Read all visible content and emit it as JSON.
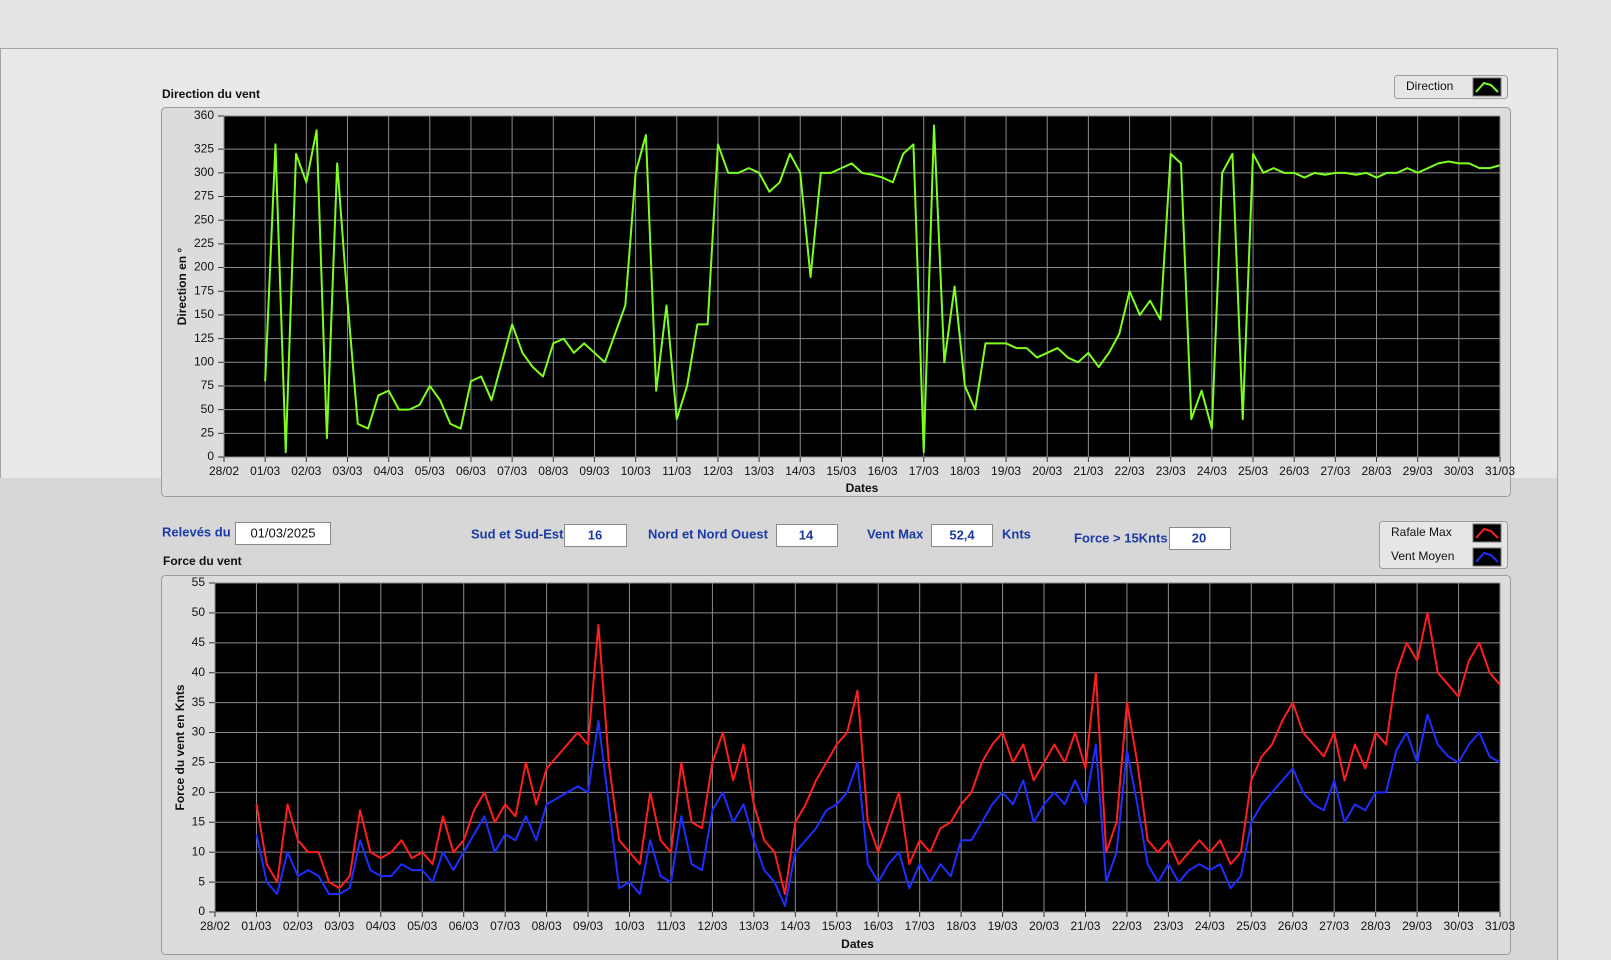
{
  "chart_data": [
    {
      "type": "line",
      "title": "Direction du vent",
      "xlabel": "Dates",
      "ylabel": "Direction en °",
      "grid": true,
      "legend": "top-right",
      "xlim": [
        0,
        31
      ],
      "xticks": [
        {
          "value": 0,
          "label": "28/02"
        },
        {
          "value": 1,
          "label": "01/03"
        },
        {
          "value": 2,
          "label": "02/03"
        },
        {
          "value": 3,
          "label": "03/03"
        },
        {
          "value": 4,
          "label": "04/03"
        },
        {
          "value": 5,
          "label": "05/03"
        },
        {
          "value": 6,
          "label": "06/03"
        },
        {
          "value": 7,
          "label": "07/03"
        },
        {
          "value": 8,
          "label": "08/03"
        },
        {
          "value": 9,
          "label": "09/03"
        },
        {
          "value": 10,
          "label": "10/03"
        },
        {
          "value": 11,
          "label": "11/03"
        },
        {
          "value": 12,
          "label": "12/03"
        },
        {
          "value": 13,
          "label": "13/03"
        },
        {
          "value": 14,
          "label": "14/03"
        },
        {
          "value": 15,
          "label": "15/03"
        },
        {
          "value": 16,
          "label": "16/03"
        },
        {
          "value": 17,
          "label": "17/03"
        },
        {
          "value": 18,
          "label": "18/03"
        },
        {
          "value": 19,
          "label": "19/03"
        },
        {
          "value": 20,
          "label": "20/03"
        },
        {
          "value": 21,
          "label": "21/03"
        },
        {
          "value": 22,
          "label": "22/03"
        },
        {
          "value": 23,
          "label": "23/03"
        },
        {
          "value": 24,
          "label": "24/03"
        },
        {
          "value": 25,
          "label": "25/03"
        },
        {
          "value": 26,
          "label": "26/03"
        },
        {
          "value": 27,
          "label": "27/03"
        },
        {
          "value": 28,
          "label": "28/03"
        },
        {
          "value": 29,
          "label": "29/03"
        },
        {
          "value": 30,
          "label": "30/03"
        },
        {
          "value": 31,
          "label": "31/03"
        }
      ],
      "ylim": [
        0,
        360
      ],
      "yticks": [
        0,
        25,
        50,
        75,
        100,
        125,
        150,
        175,
        200,
        225,
        250,
        275,
        300,
        325,
        360
      ],
      "x": [
        1,
        1.25,
        1.5,
        1.75,
        2,
        2.25,
        2.5,
        2.75,
        3,
        3.25,
        3.5,
        3.75,
        4,
        4.25,
        4.5,
        4.75,
        5,
        5.25,
        5.5,
        5.75,
        6,
        6.25,
        6.5,
        6.75,
        7,
        7.25,
        7.5,
        7.75,
        8,
        8.25,
        8.5,
        8.75,
        9,
        9.25,
        9.5,
        9.75,
        10,
        10.25,
        10.5,
        10.75,
        11,
        11.25,
        11.5,
        11.75,
        12,
        12.25,
        12.5,
        12.75,
        13,
        13.25,
        13.5,
        13.75,
        14,
        14.25,
        14.5,
        14.75,
        15,
        15.25,
        15.5,
        15.75,
        16,
        16.25,
        16.5,
        16.75,
        17,
        17.25,
        17.5,
        17.75,
        18,
        18.25,
        18.5,
        18.75,
        19,
        19.25,
        19.5,
        19.75,
        20,
        20.25,
        20.5,
        20.75,
        21,
        21.25,
        21.5,
        21.75,
        22,
        22.25,
        22.5,
        22.75,
        23,
        23.25,
        23.5,
        23.75,
        24,
        24.25,
        24.5,
        24.75,
        25,
        25.25,
        25.5,
        25.75,
        26,
        26.25,
        26.5,
        26.75,
        27,
        27.25,
        27.5,
        27.75,
        28,
        28.25,
        28.5,
        28.75,
        29,
        29.25,
        29.5,
        29.75,
        30,
        30.25,
        30.5,
        30.75,
        31
      ],
      "series": [
        {
          "name": "Direction",
          "color": "#7cff1e",
          "values": [
            80,
            330,
            5,
            320,
            290,
            345,
            20,
            310,
            165,
            35,
            30,
            65,
            70,
            50,
            50,
            55,
            75,
            60,
            35,
            30,
            80,
            85,
            60,
            100,
            140,
            110,
            95,
            85,
            120,
            125,
            110,
            120,
            110,
            100,
            130,
            160,
            300,
            340,
            70,
            160,
            40,
            75,
            140,
            140,
            330,
            300,
            300,
            305,
            300,
            280,
            290,
            320,
            300,
            190,
            300,
            300,
            305,
            310,
            300,
            298,
            295,
            290,
            320,
            330,
            5,
            350,
            100,
            180,
            75,
            50,
            120,
            120,
            120,
            115,
            115,
            105,
            110,
            115,
            105,
            100,
            110,
            95,
            110,
            130,
            175,
            150,
            165,
            145,
            320,
            310,
            40,
            70,
            30,
            300,
            320,
            40,
            320,
            300,
            305,
            300,
            300,
            295,
            300,
            298,
            300,
            300,
            298,
            300,
            295,
            300,
            300,
            305,
            300,
            305,
            310,
            312,
            310,
            310,
            305,
            305,
            308
          ]
        }
      ]
    },
    {
      "type": "line",
      "title": "Force du vent",
      "xlabel": "Dates",
      "ylabel": "Force du vent en Knts",
      "grid": true,
      "legend": "top-right",
      "xlim": [
        0,
        31
      ],
      "xticks": [
        {
          "value": 0,
          "label": "28/02"
        },
        {
          "value": 1,
          "label": "01/03"
        },
        {
          "value": 2,
          "label": "02/03"
        },
        {
          "value": 3,
          "label": "03/03"
        },
        {
          "value": 4,
          "label": "04/03"
        },
        {
          "value": 5,
          "label": "05/03"
        },
        {
          "value": 6,
          "label": "06/03"
        },
        {
          "value": 7,
          "label": "07/03"
        },
        {
          "value": 8,
          "label": "08/03"
        },
        {
          "value": 9,
          "label": "09/03"
        },
        {
          "value": 10,
          "label": "10/03"
        },
        {
          "value": 11,
          "label": "11/03"
        },
        {
          "value": 12,
          "label": "12/03"
        },
        {
          "value": 13,
          "label": "13/03"
        },
        {
          "value": 14,
          "label": "14/03"
        },
        {
          "value": 15,
          "label": "15/03"
        },
        {
          "value": 16,
          "label": "16/03"
        },
        {
          "value": 17,
          "label": "17/03"
        },
        {
          "value": 18,
          "label": "18/03"
        },
        {
          "value": 19,
          "label": "19/03"
        },
        {
          "value": 20,
          "label": "20/03"
        },
        {
          "value": 21,
          "label": "21/03"
        },
        {
          "value": 22,
          "label": "22/03"
        },
        {
          "value": 23,
          "label": "23/03"
        },
        {
          "value": 24,
          "label": "24/03"
        },
        {
          "value": 25,
          "label": "25/03"
        },
        {
          "value": 26,
          "label": "26/03"
        },
        {
          "value": 27,
          "label": "27/03"
        },
        {
          "value": 28,
          "label": "28/03"
        },
        {
          "value": 29,
          "label": "29/03"
        },
        {
          "value": 30,
          "label": "30/03"
        },
        {
          "value": 31,
          "label": "31/03"
        }
      ],
      "ylim": [
        0,
        55
      ],
      "yticks": [
        0,
        5,
        10,
        15,
        20,
        25,
        30,
        35,
        40,
        45,
        50,
        55
      ],
      "x": [
        1,
        1.25,
        1.5,
        1.75,
        2,
        2.25,
        2.5,
        2.75,
        3,
        3.25,
        3.5,
        3.75,
        4,
        4.25,
        4.5,
        4.75,
        5,
        5.25,
        5.5,
        5.75,
        6,
        6.25,
        6.5,
        6.75,
        7,
        7.25,
        7.5,
        7.75,
        8,
        8.25,
        8.5,
        8.75,
        9,
        9.25,
        9.5,
        9.75,
        10,
        10.25,
        10.5,
        10.75,
        11,
        11.25,
        11.5,
        11.75,
        12,
        12.25,
        12.5,
        12.75,
        13,
        13.25,
        13.5,
        13.75,
        14,
        14.25,
        14.5,
        14.75,
        15,
        15.25,
        15.5,
        15.75,
        16,
        16.25,
        16.5,
        16.75,
        17,
        17.25,
        17.5,
        17.75,
        18,
        18.25,
        18.5,
        18.75,
        19,
        19.25,
        19.5,
        19.75,
        20,
        20.25,
        20.5,
        20.75,
        21,
        21.25,
        21.5,
        21.75,
        22,
        22.25,
        22.5,
        22.75,
        23,
        23.25,
        23.5,
        23.75,
        24,
        24.25,
        24.5,
        24.75,
        25,
        25.25,
        25.5,
        25.75,
        26,
        26.25,
        26.5,
        26.75,
        27,
        27.25,
        27.5,
        27.75,
        28,
        28.25,
        28.5,
        28.75,
        29,
        29.25,
        29.5,
        29.75,
        30,
        30.25,
        30.5,
        30.75,
        31
      ],
      "series": [
        {
          "name": "Rafale Max",
          "color": "#ff1e1e",
          "values": [
            18,
            8,
            5,
            18,
            12,
            10,
            10,
            5,
            4,
            6,
            17,
            10,
            9,
            10,
            12,
            9,
            10,
            8,
            16,
            10,
            12,
            17,
            20,
            15,
            18,
            16,
            25,
            18,
            24,
            26,
            28,
            30,
            28,
            48,
            25,
            12,
            10,
            8,
            20,
            12,
            10,
            25,
            15,
            14,
            25,
            30,
            22,
            28,
            18,
            12,
            10,
            3,
            15,
            18,
            22,
            25,
            28,
            30,
            37,
            15,
            10,
            15,
            20,
            8,
            12,
            10,
            14,
            15,
            18,
            20,
            25,
            28,
            30,
            25,
            28,
            22,
            25,
            28,
            25,
            30,
            24,
            40,
            10,
            15,
            35,
            25,
            12,
            10,
            12,
            8,
            10,
            12,
            10,
            12,
            8,
            10,
            22,
            26,
            28,
            32,
            35,
            30,
            28,
            26,
            30,
            22,
            28,
            24,
            30,
            28,
            40,
            45,
            42,
            50,
            40,
            38,
            36,
            42,
            45,
            40,
            38
          ]
        },
        {
          "name": "Vent Moyen",
          "color": "#1e2eff",
          "values": [
            13,
            5,
            3,
            10,
            6,
            7,
            6,
            3,
            3,
            4,
            12,
            7,
            6,
            6,
            8,
            7,
            7,
            5,
            10,
            7,
            10,
            13,
            16,
            10,
            13,
            12,
            16,
            12,
            18,
            19,
            20,
            21,
            20,
            32,
            18,
            4,
            5,
            3,
            12,
            6,
            5,
            16,
            8,
            7,
            17,
            20,
            15,
            18,
            12,
            7,
            5,
            1,
            10,
            12,
            14,
            17,
            18,
            20,
            25,
            8,
            5,
            8,
            10,
            4,
            8,
            5,
            8,
            6,
            12,
            12,
            15,
            18,
            20,
            18,
            22,
            15,
            18,
            20,
            18,
            22,
            18,
            28,
            5,
            10,
            27,
            18,
            8,
            5,
            8,
            5,
            7,
            8,
            7,
            8,
            4,
            6,
            15,
            18,
            20,
            22,
            24,
            20,
            18,
            17,
            22,
            15,
            18,
            17,
            20,
            20,
            27,
            30,
            25,
            33,
            28,
            26,
            25,
            28,
            30,
            26,
            25
          ]
        }
      ]
    }
  ],
  "controls": {
    "releves": {
      "label": "Relevés du",
      "value": "01/03/2025"
    },
    "sud": {
      "label": "Sud et Sud-Est",
      "value": 16
    },
    "nord": {
      "label": "Nord et Nord Ouest",
      "value": 14
    },
    "vent_max": {
      "label": "Vent Max",
      "value": "52,4",
      "unit": "Knts"
    },
    "force15": {
      "label": "Force > 15Knts",
      "value": 20
    }
  }
}
